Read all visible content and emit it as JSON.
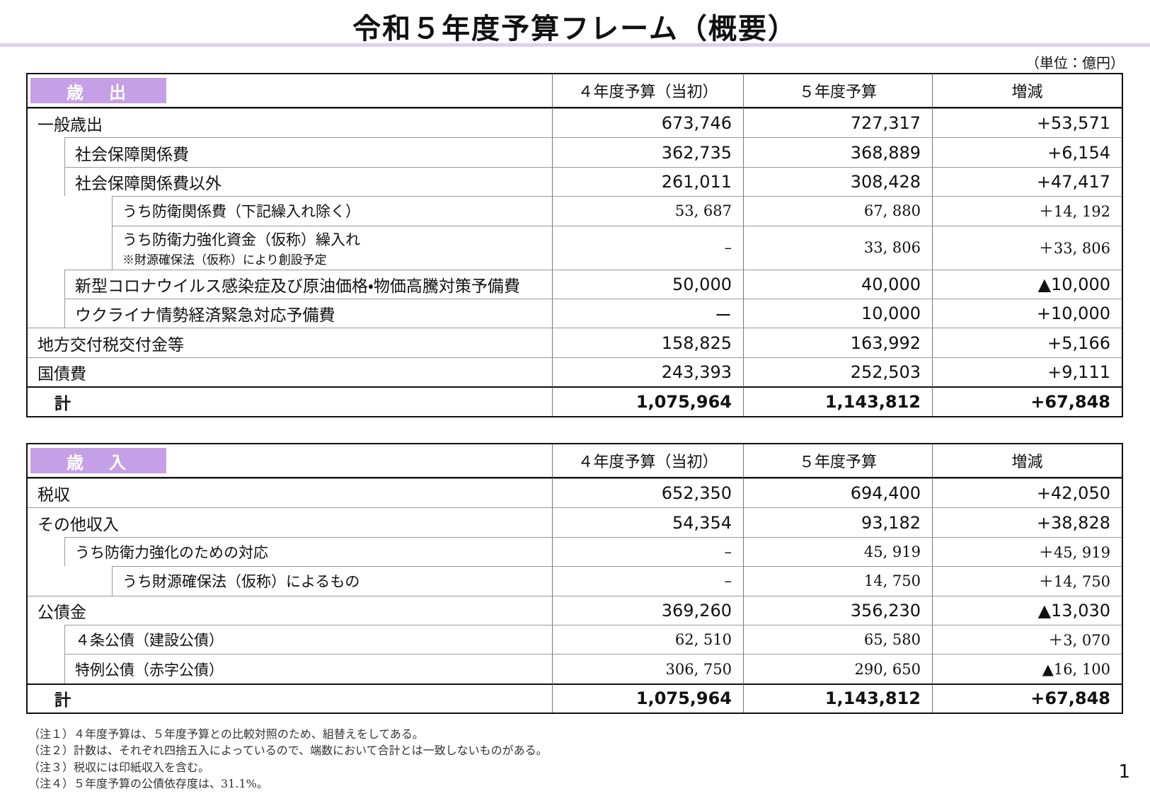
{
  "title": "令和５年度予算フレーム（概要）",
  "unit": "（単位：億円）",
  "expenditure": {
    "header": [
      "歳　出",
      "４年度予算（当初）",
      "５年度予算",
      "増減"
    ],
    "rows": [
      {
        "label": "一般歳出",
        "cells": [
          "673,746",
          "727,317",
          "+53,571"
        ]
      },
      {
        "label": "社会保障関係費",
        "cells": [
          "362,735",
          "368,889",
          "+6,154"
        ]
      },
      {
        "label": "社会保障関係費以外",
        "cells": [
          "261,011",
          "308,428",
          "+47,417"
        ]
      },
      {
        "label": "うち防衛関係費（下記繰入れ除く）",
        "cells": [
          "53, 687",
          "67, 880",
          "＋14, 192"
        ]
      },
      {
        "label": "うち防衛力強化資金（仮称）繰入れ",
        "note": "※財源確保法（仮称）により創設予定",
        "cells": [
          "–",
          "33, 806",
          "＋33, 806"
        ]
      },
      {
        "label": "新型コロナウイルス感染症及び原油価格・物価高騰対策予備費",
        "cells": [
          "50,000",
          "40,000",
          "▲10,000"
        ]
      },
      {
        "label": "ウクライナ情勢経済緊急対応予備費",
        "cells": [
          "ー",
          "10,000",
          "+10,000"
        ]
      },
      {
        "label": "地方交付税交付金等",
        "cells": [
          "158,825",
          "163,992",
          "+5,166"
        ]
      },
      {
        "label": "国債費",
        "cells": [
          "243,393",
          "252,503",
          "+9,111"
        ]
      },
      {
        "label": "計",
        "cells": [
          "1,075,964",
          "1,143,812",
          "+67,848"
        ]
      }
    ]
  },
  "revenue": {
    "header": [
      "歳　入",
      "４年度予算（当初）",
      "５年度予算",
      "増減"
    ],
    "rows": [
      {
        "label": "税収",
        "cells": [
          "652,350",
          "694,400",
          "+42,050"
        ]
      },
      {
        "label": "その他収入",
        "cells": [
          "54,354",
          "93,182",
          "+38,828"
        ]
      },
      {
        "label": "うち防衛力強化のための対応",
        "cells": [
          "–",
          "45, 919",
          "＋45, 919"
        ]
      },
      {
        "label": "うち財源確保法（仮称）によるもの",
        "cells": [
          "–",
          "14, 750",
          "＋14, 750"
        ]
      },
      {
        "label": "公債金",
        "cells": [
          "369,260",
          "356,230",
          "▲13,030"
        ]
      },
      {
        "label": "４条公債（建設公債）",
        "cells": [
          "62, 510",
          "65, 580",
          "＋3, 070"
        ]
      },
      {
        "label": "特例公債（赤字公債）",
        "cells": [
          "306, 750",
          "290, 650",
          "▲16, 100"
        ]
      },
      {
        "label": "計",
        "cells": [
          "1,075,964",
          "1,143,812",
          "+67,848"
        ]
      }
    ]
  },
  "notes": [
    "（注１）４年度予算は、５年度予算との比較対照のため、組替えをしてある。",
    "（注２）計数は、それぞれ四捨五入によっているので、端数において合計とは一致しないものがある。",
    "（注３）税収には印紙収入を含む。",
    "（注４）５年度予算の公債依存度は、31.1%。"
  ],
  "page_number": "1"
}
